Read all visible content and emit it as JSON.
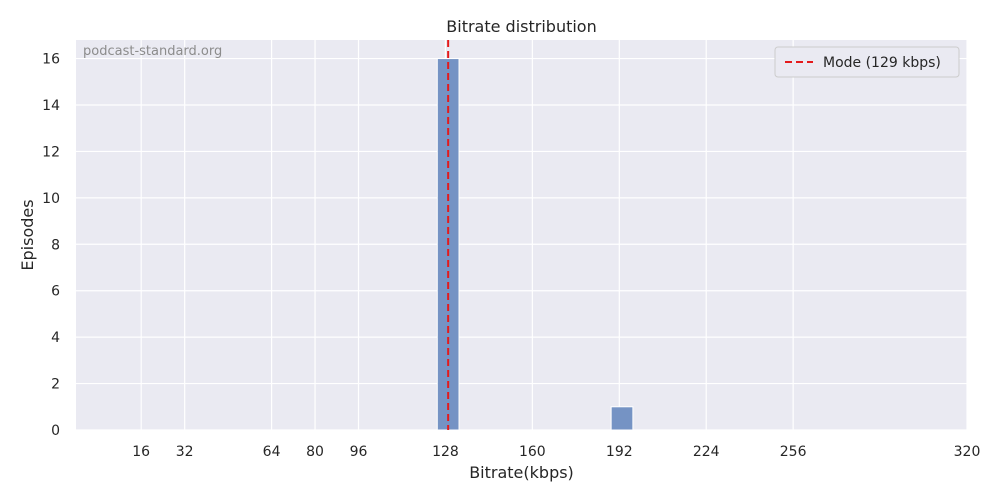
{
  "chart_data": {
    "type": "bar",
    "title": "Bitrate distribution",
    "xlabel": "Bitrate(kbps)",
    "ylabel": "Episodes",
    "watermark": "podcast-standard.org",
    "xlim": [
      -8,
      320
    ],
    "ylim": [
      0,
      16.8
    ],
    "x_ticks": [
      16,
      32,
      64,
      80,
      96,
      128,
      160,
      192,
      224,
      256,
      320
    ],
    "y_ticks": [
      0,
      2,
      4,
      6,
      8,
      10,
      12,
      14,
      16
    ],
    "bins": [
      {
        "x_start": 125,
        "x_end": 133,
        "count": 16
      },
      {
        "x_start": 189,
        "x_end": 197,
        "count": 1
      }
    ],
    "mode_line": {
      "x": 129,
      "label": "Mode (129 kbps)",
      "color": "#e41a1c",
      "style": "dashed"
    },
    "legend_position": "top-right",
    "grid": true,
    "colors": {
      "bar": "#7593c4",
      "background": "#eaeaf2",
      "grid": "#ffffff"
    }
  }
}
